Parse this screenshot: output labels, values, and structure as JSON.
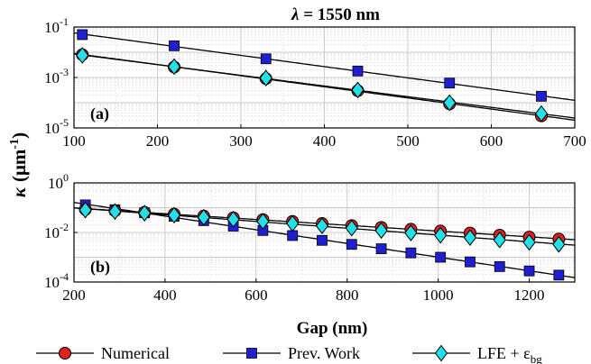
{
  "chart_data": [
    {
      "panel": "(a)",
      "type": "scatter",
      "title": "λ = 1550 nm",
      "xlim": [
        100,
        700
      ],
      "ylog": true,
      "ylim_exp": [
        -5,
        -1
      ],
      "xticks": [
        100,
        200,
        300,
        400,
        500,
        600,
        700
      ],
      "yticks": [
        "10^-1",
        "10^-3",
        "10^-5"
      ],
      "grid": true,
      "series": [
        {
          "name": "Prev. Work",
          "marker": "square",
          "color": "#1f1fd0",
          "x": [
            110,
            220,
            330,
            440,
            550,
            660
          ],
          "y": [
            0.05,
            0.018,
            0.0055,
            0.0018,
            0.0006,
            0.00018
          ]
        },
        {
          "name": "Numerical",
          "marker": "circle",
          "color": "#e01f1f",
          "x": [
            110,
            220,
            330,
            440,
            550,
            660
          ],
          "y": [
            0.008,
            0.0026,
            0.0009,
            0.0003,
            9e-05,
            3e-05
          ]
        },
        {
          "name": "LFE + ε_bg",
          "marker": "diamond",
          "color": "#22e0e6",
          "x": [
            110,
            220,
            330,
            440,
            550,
            660
          ],
          "y": [
            0.0075,
            0.0027,
            0.00095,
            0.00032,
            0.0001,
            3.7e-05
          ]
        }
      ]
    },
    {
      "panel": "(b)",
      "type": "scatter",
      "xlim": [
        200,
        1300
      ],
      "ylog": true,
      "ylim_exp": [
        -4,
        0
      ],
      "xticks": [
        200,
        400,
        600,
        800,
        1000,
        1200
      ],
      "yticks": [
        "10^0",
        "10^-2",
        "10^-4"
      ],
      "grid": true,
      "xlabel": "Gap (nm)",
      "series": [
        {
          "name": "Prev. Work",
          "marker": "square",
          "color": "#1f1fd0",
          "x": [
            225,
            290,
            355,
            420,
            485,
            550,
            615,
            680,
            745,
            810,
            875,
            940,
            1005,
            1070,
            1135,
            1200,
            1265
          ],
          "y": [
            0.13,
            0.083,
            0.062,
            0.045,
            0.03,
            0.018,
            0.012,
            0.0075,
            0.0048,
            0.0033,
            0.0022,
            0.0015,
            0.001,
            0.00065,
            0.00042,
            0.00028,
            0.00019
          ]
        },
        {
          "name": "Numerical",
          "marker": "circle",
          "color": "#e01f1f",
          "x": [
            225,
            290,
            355,
            420,
            485,
            550,
            615,
            680,
            745,
            810,
            875,
            940,
            1005,
            1070,
            1135,
            1200,
            1265
          ],
          "y": [
            0.085,
            0.075,
            0.065,
            0.055,
            0.046,
            0.039,
            0.033,
            0.028,
            0.023,
            0.019,
            0.016,
            0.0135,
            0.0115,
            0.0095,
            0.0078,
            0.0065,
            0.0054
          ]
        },
        {
          "name": "LFE + ε_bg",
          "marker": "diamond",
          "color": "#22e0e6",
          "x": [
            225,
            290,
            355,
            420,
            485,
            550,
            615,
            680,
            745,
            810,
            875,
            940,
            1005,
            1070,
            1135,
            1200,
            1265
          ],
          "y": [
            0.08,
            0.07,
            0.06,
            0.05,
            0.041,
            0.034,
            0.028,
            0.023,
            0.0185,
            0.015,
            0.012,
            0.0095,
            0.0077,
            0.0062,
            0.005,
            0.004,
            0.0033
          ]
        }
      ]
    }
  ],
  "labels": {
    "title_prefix": "λ",
    "title_rest": " = 1550 nm",
    "ylabel_kappa": "κ",
    "ylabel_unit": "(μm",
    "ylabel_exp": "-1",
    "ylabel_close": ")",
    "panel_a": "(a)",
    "panel_b": "(b)",
    "xlabel": "Gap (nm)"
  },
  "legend": [
    {
      "label": "Numerical",
      "marker": "circle",
      "color": "#e01f1f"
    },
    {
      "label": "Prev. Work",
      "marker": "square",
      "color": "#1f1fd0"
    },
    {
      "label": "LFE + ε",
      "sub": "bg",
      "marker": "diamond",
      "color": "#22e0e6"
    }
  ]
}
